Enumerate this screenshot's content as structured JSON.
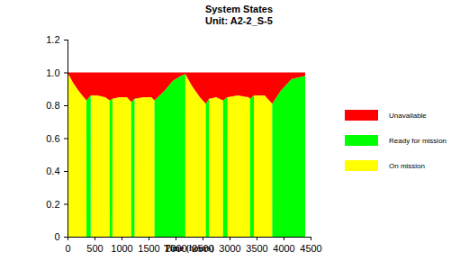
{
  "chart_data": {
    "type": "area",
    "stacked": true,
    "title": "System States",
    "subtitle": "Unit: A2-2_S-5",
    "x_label": "Time (hours)",
    "legend": "right",
    "xlim": [
      0,
      4500
    ],
    "xticks": [
      0,
      500,
      1000,
      1500,
      2000,
      2500,
      3000,
      3500,
      4000,
      4500
    ],
    "ylim": [
      0,
      1.2
    ],
    "yticks": [
      0,
      0.2,
      0.4,
      0.6,
      0.8,
      {
        "value": 1,
        "label": "1.0"
      },
      1.2
    ],
    "x": [
      0,
      100,
      200,
      300,
      350,
      351,
      400,
      429,
      430,
      550,
      700,
      780,
      781,
      830,
      831,
      950,
      1100,
      1180,
      1181,
      1240,
      1241,
      1400,
      1550,
      1610,
      1611,
      1800,
      1950,
      2100,
      2180,
      2181,
      2300,
      2450,
      2560,
      2561,
      2620,
      2621,
      2750,
      2880,
      2881,
      2960,
      2961,
      3150,
      3350,
      3380,
      3381,
      3450,
      3451,
      3650,
      3790,
      3791,
      3950,
      4150,
      4400
    ],
    "series": [
      {
        "name": "On mission",
        "color": "#ffff00",
        "values": [
          1,
          0.94,
          0.89,
          0.85,
          0.83,
          0,
          0,
          0,
          0.86,
          0.86,
          0.85,
          0.83,
          0,
          0,
          0.84,
          0.85,
          0.85,
          0.82,
          0,
          0,
          0.84,
          0.85,
          0.85,
          0.83,
          0,
          0,
          0,
          0,
          0,
          0.99,
          0.92,
          0.85,
          0.81,
          0,
          0,
          0.84,
          0.85,
          0.83,
          0,
          0,
          0.85,
          0.86,
          0.85,
          0.84,
          0,
          0,
          0.86,
          0.86,
          0.81,
          0,
          0,
          0,
          0
        ]
      },
      {
        "name": "Ready for mission",
        "color": "#00ff00",
        "values": [
          0,
          0,
          0,
          0,
          0,
          0.83,
          0.85,
          0.86,
          0,
          0,
          0,
          0,
          0.83,
          0.84,
          0,
          0,
          0,
          0,
          0.82,
          0.84,
          0,
          0,
          0,
          0,
          0.83,
          0.89,
          0.95,
          0.98,
          0.99,
          0,
          0,
          0,
          0,
          0.81,
          0.84,
          0,
          0,
          0,
          0.83,
          0.85,
          0,
          0,
          0,
          0,
          0.84,
          0.86,
          0,
          0,
          0,
          0.81,
          0.89,
          0.96,
          0.98
        ]
      },
      {
        "name": "Unavailable",
        "color": "#ff0000",
        "values": [
          0,
          0.06,
          0.11,
          0.15,
          0.17,
          0.17,
          0.15,
          0.14,
          0.14,
          0.14,
          0.15,
          0.17,
          0.17,
          0.16,
          0.16,
          0.15,
          0.15,
          0.18,
          0.18,
          0.16,
          0.16,
          0.15,
          0.15,
          0.17,
          0.17,
          0.11,
          0.05,
          0.02,
          0.01,
          0.01,
          0.08,
          0.15,
          0.19,
          0.19,
          0.16,
          0.16,
          0.15,
          0.17,
          0.17,
          0.15,
          0.15,
          0.14,
          0.15,
          0.16,
          0.16,
          0.14,
          0.14,
          0.14,
          0.19,
          0.19,
          0.11,
          0.04,
          0.02
        ]
      }
    ]
  }
}
